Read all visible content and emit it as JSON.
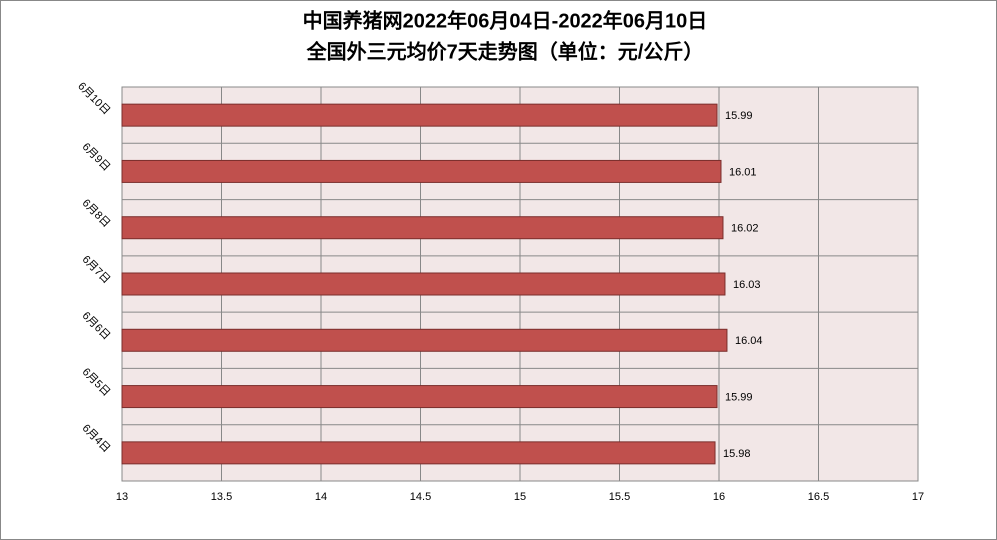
{
  "chart_data": {
    "type": "hbar",
    "title": "中国养猪网2022年06月04日-2022年06月10日",
    "subtitle": "全国外三元均价7天走势图（单位：元/公斤）",
    "categories": [
      "6月4日",
      "6月5日",
      "6月6日",
      "6月7日",
      "6月8日",
      "6月9日",
      "6月10日"
    ],
    "values": [
      15.98,
      15.99,
      16.04,
      16.03,
      16.02,
      16.01,
      15.99
    ],
    "color": "#c0504d",
    "xlim": [
      13,
      17
    ],
    "xticks": [
      13,
      13.5,
      14,
      14.5,
      15,
      15.5,
      16,
      16.5,
      17
    ],
    "grid": true
  }
}
